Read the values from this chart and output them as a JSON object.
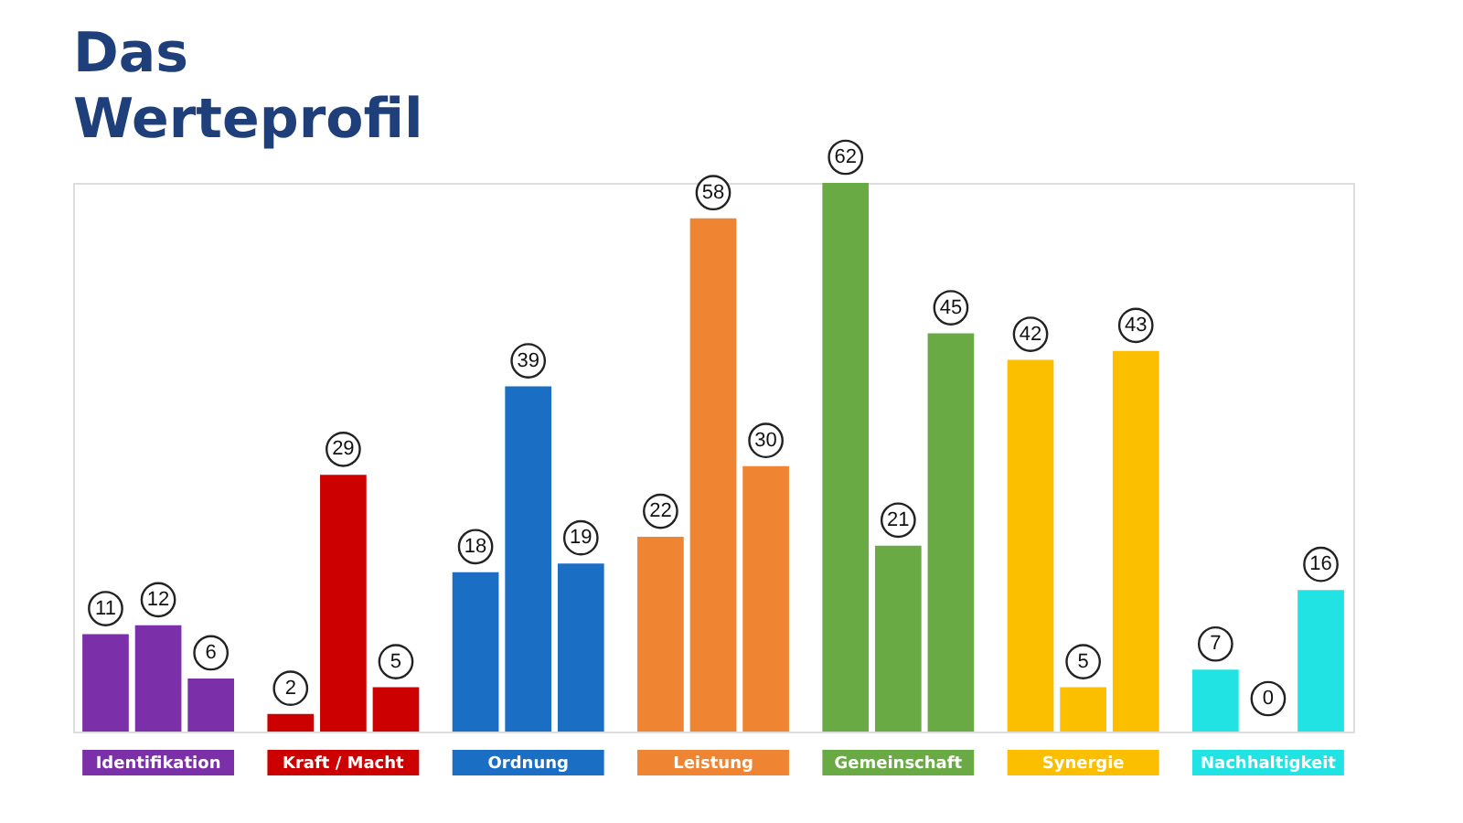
{
  "chart_data": {
    "type": "bar",
    "title": "Das Werteprofil",
    "data_labels": true,
    "categories": [
      "Identifikation",
      "Kraft / Macht",
      "Ordnung",
      "Leistung",
      "Gemeinschaft",
      "Synergie",
      "Nachhaltigkeit"
    ],
    "series": [
      {
        "colors": [
          "#7b2fa8",
          "#cc0000",
          "#1a6fc4",
          "#ef8532",
          "#6aaa45",
          "#fbbf00",
          "#22e3e3"
        ],
        "values": [
          11,
          2,
          18,
          22,
          62,
          42,
          7
        ]
      },
      {
        "colors": [
          "#7b2fa8",
          "#cc0000",
          "#1a6fc4",
          "#ef8532",
          "#6aaa45",
          "#fbbf00",
          "#22e3e3"
        ],
        "values": [
          12,
          29,
          39,
          58,
          21,
          5,
          0
        ]
      },
      {
        "colors": [
          "#7b2fa8",
          "#cc0000",
          "#1a6fc4",
          "#ef8532",
          "#6aaa45",
          "#fbbf00",
          "#22e3e3"
        ],
        "values": [
          6,
          5,
          19,
          30,
          45,
          43,
          16
        ]
      }
    ]
  }
}
